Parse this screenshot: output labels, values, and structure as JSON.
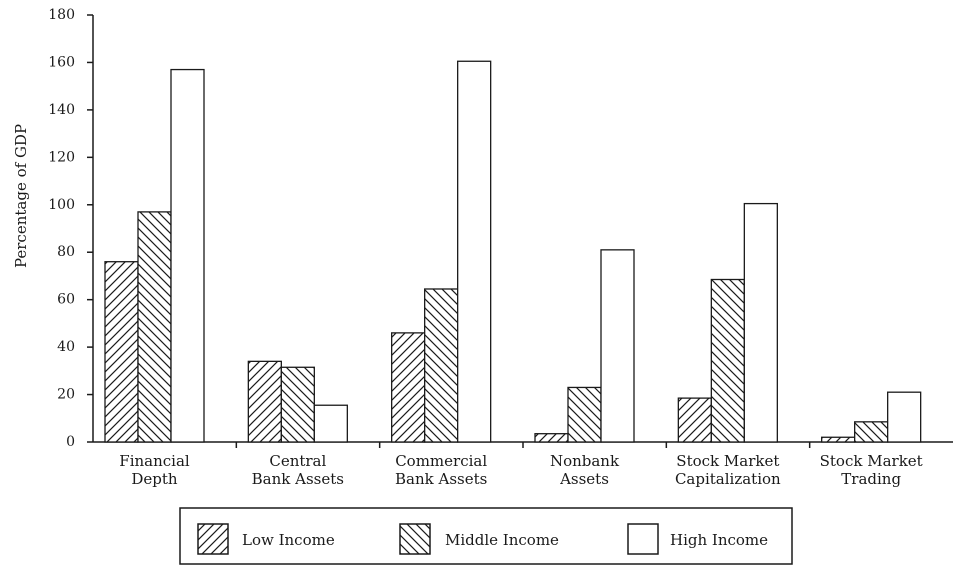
{
  "chart_data": {
    "type": "bar",
    "title": "",
    "xlabel": "",
    "ylabel": "Percentage of GDP",
    "ylim": [
      0,
      180
    ],
    "yticks": [
      0,
      20,
      40,
      60,
      80,
      100,
      120,
      140,
      160,
      180
    ],
    "grid": false,
    "legend_position": "bottom",
    "categories": [
      [
        "Financial",
        "Depth"
      ],
      [
        "Central",
        "Bank Assets"
      ],
      [
        "Commercial",
        "Bank Assets"
      ],
      [
        "Nonbank",
        "Assets"
      ],
      [
        "Stock Market",
        "Capitalization"
      ],
      [
        "Stock Market",
        "Trading"
      ]
    ],
    "series": [
      {
        "name": "Low Income",
        "pattern": "diag-forward",
        "values": [
          76,
          34,
          46,
          3.5,
          18.5,
          2
        ]
      },
      {
        "name": "Middle Income",
        "pattern": "diag-back",
        "values": [
          97,
          31.5,
          64.5,
          23,
          68.5,
          8.5
        ]
      },
      {
        "name": "High Income",
        "pattern": "blank",
        "values": [
          157,
          15.5,
          160.5,
          81,
          100.5,
          21
        ]
      }
    ]
  }
}
